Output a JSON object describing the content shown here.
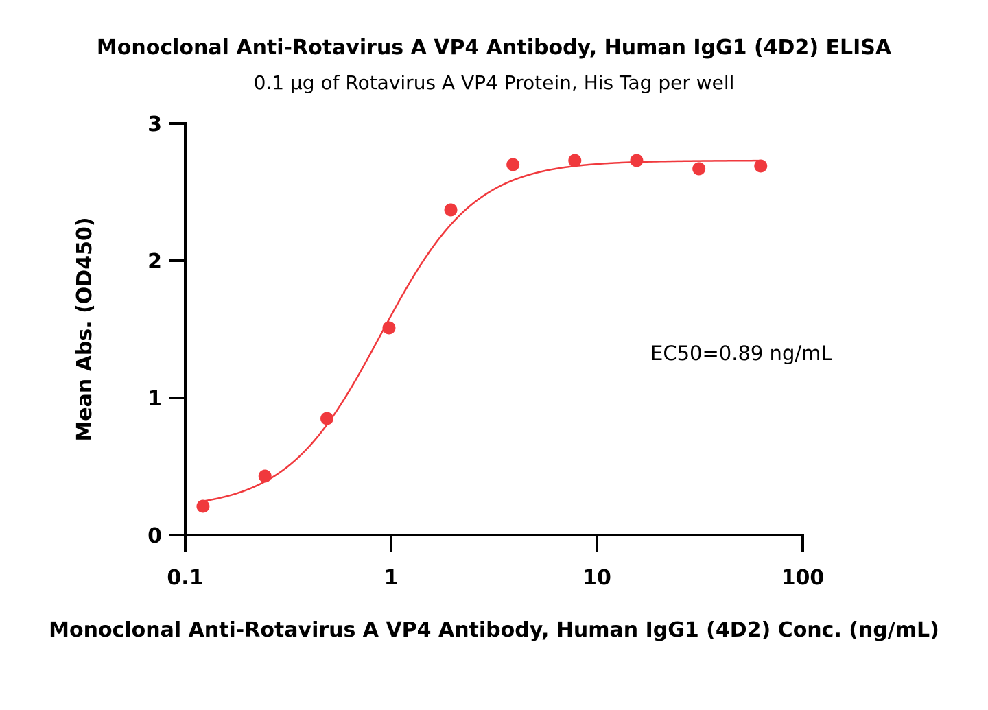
{
  "chart_data": {
    "type": "scatter",
    "title": "Monoclonal Anti-Rotavirus A VP4 Antibody, Human IgG1 (4D2) ELISA",
    "subtitle": "0.1 μg of Rotavirus A VP4 Protein, His Tag per well",
    "xlabel": "Monoclonal Anti-Rotavirus A VP4 Antibody, Human IgG1 (4D2) Conc. (ng/mL)",
    "ylabel": "Mean Abs. (OD450)",
    "x_scale": "log",
    "xlim": [
      0.1,
      100
    ],
    "ylim": [
      0,
      3
    ],
    "x_ticks": [
      0.1,
      1,
      10,
      100
    ],
    "x_tick_labels": [
      "0.1",
      "1",
      "10",
      "100"
    ],
    "y_ticks": [
      0,
      1,
      2,
      3
    ],
    "y_tick_labels": [
      "0",
      "1",
      "2",
      "3"
    ],
    "grid": false,
    "annotation": "EC50=0.89 ng/mL",
    "series": [
      {
        "color": "#f0393d",
        "x": [
          0.122,
          0.244,
          0.488,
          0.977,
          1.95,
          3.91,
          7.81,
          15.6,
          31.3,
          62.5
        ],
        "values": [
          0.21,
          0.43,
          0.85,
          1.51,
          2.37,
          2.7,
          2.73,
          2.73,
          2.67,
          2.69
        ]
      }
    ],
    "fit": {
      "type": "4PL",
      "color": "#f0393d",
      "bottom": 0.19,
      "top": 2.73,
      "ec50": 0.89,
      "hill": 1.9,
      "x_range": [
        0.122,
        62.5
      ]
    }
  }
}
